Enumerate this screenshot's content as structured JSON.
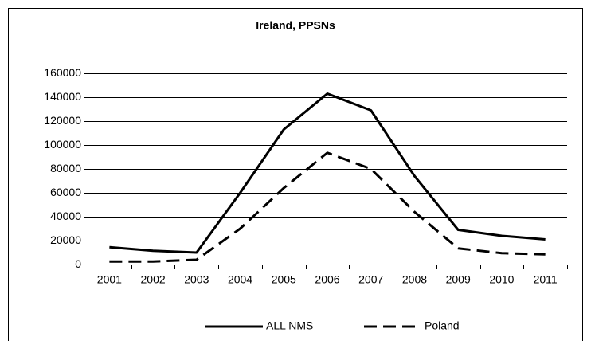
{
  "chart_data": {
    "type": "line",
    "title": "Ireland, PPSNs",
    "categories": [
      "2001",
      "2002",
      "2003",
      "2004",
      "2005",
      "2006",
      "2007",
      "2008",
      "2009",
      "2010",
      "2011"
    ],
    "series": [
      {
        "name": "ALL NMS",
        "color": "#000000",
        "dash": false,
        "values": [
          14500,
          11500,
          10000,
          60000,
          113000,
          143000,
          129000,
          74000,
          29000,
          24000,
          21000
        ]
      },
      {
        "name": "Poland",
        "color": "#000000",
        "dash": true,
        "values": [
          2500,
          2500,
          4000,
          30000,
          64000,
          93500,
          80000,
          44000,
          13500,
          9500,
          8500
        ]
      }
    ],
    "ylim": [
      0,
      160000
    ],
    "yticks": [
      0,
      20000,
      40000,
      60000,
      80000,
      100000,
      120000,
      140000,
      160000
    ],
    "grid": true,
    "legend": "bottom"
  }
}
